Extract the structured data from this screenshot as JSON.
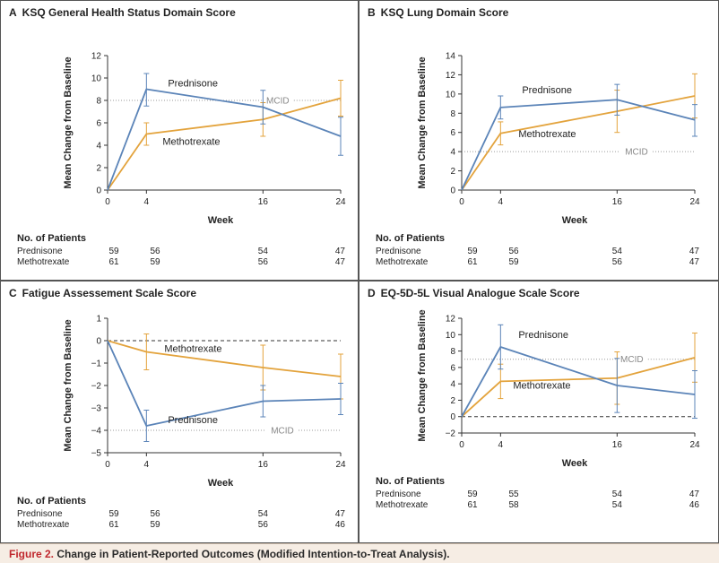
{
  "caption": {
    "label": "Figure 2.",
    "title": "Change in Patient-Reported Outcomes (Modified Intention-to-Treat Analysis)."
  },
  "colors": {
    "prednisone": "#5b84b8",
    "methotrexate": "#e3a33c",
    "mcid": "#9a9a9a",
    "axis": "#333333",
    "border": "#555555",
    "caption_bg": "#f6ede4",
    "caption_label": "#c0272d"
  },
  "chart_data": [
    {
      "type": "line",
      "panel_letter": "A",
      "title": "KSQ General Health Status Domain Score",
      "xlabel": "Week",
      "ylabel": "Mean Change from Baseline",
      "x": [
        0,
        4,
        16,
        24
      ],
      "x_ticks": [
        "0",
        "4",
        "16",
        "24"
      ],
      "ylim": [
        0,
        12
      ],
      "y_ticks": [
        0,
        2,
        4,
        6,
        8,
        10,
        12
      ],
      "zero_dashed": false,
      "mcid": {
        "value": 8,
        "label": "MCID"
      },
      "series": [
        {
          "name": "Prednisone",
          "values": [
            0,
            9.0,
            7.4,
            4.8
          ],
          "ci": [
            null,
            [
              7.5,
              10.4
            ],
            [
              5.9,
              8.9
            ],
            [
              3.1,
              6.5
            ]
          ]
        },
        {
          "name": "Methotrexate",
          "values": [
            0,
            5.0,
            6.3,
            8.2
          ],
          "ci": [
            null,
            [
              4.0,
              6.0
            ],
            [
              4.8,
              7.8
            ],
            [
              6.6,
              9.8
            ]
          ]
        }
      ],
      "patients": {
        "header": "No. of Patients",
        "rows": [
          {
            "name": "Prednisone",
            "counts": [
              "59",
              "56",
              "54",
              "47"
            ]
          },
          {
            "name": "Methotrexate",
            "counts": [
              "61",
              "59",
              "56",
              "47"
            ]
          }
        ]
      }
    },
    {
      "type": "line",
      "panel_letter": "B",
      "title": "KSQ Lung Domain Score",
      "xlabel": "Week",
      "ylabel": "Mean Change from Baseline",
      "x": [
        0,
        4,
        16,
        24
      ],
      "x_ticks": [
        "0",
        "4",
        "16",
        "24"
      ],
      "ylim": [
        0,
        14
      ],
      "y_ticks": [
        0,
        2,
        4,
        6,
        8,
        10,
        12,
        14
      ],
      "zero_dashed": false,
      "mcid": {
        "value": 4,
        "label": "MCID"
      },
      "series": [
        {
          "name": "Prednisone",
          "values": [
            0,
            8.6,
            9.4,
            7.3
          ],
          "ci": [
            null,
            [
              7.4,
              9.8
            ],
            [
              7.8,
              11.0
            ],
            [
              5.6,
              8.9
            ]
          ]
        },
        {
          "name": "Methotrexate",
          "values": [
            0,
            5.9,
            8.2,
            9.8
          ],
          "ci": [
            null,
            [
              4.7,
              7.1
            ],
            [
              6.0,
              10.4
            ],
            [
              7.5,
              12.1
            ]
          ]
        }
      ],
      "patients": {
        "header": "No. of Patients",
        "rows": [
          {
            "name": "Prednisone",
            "counts": [
              "59",
              "56",
              "54",
              "47"
            ]
          },
          {
            "name": "Methotrexate",
            "counts": [
              "61",
              "59",
              "56",
              "47"
            ]
          }
        ]
      }
    },
    {
      "type": "line",
      "panel_letter": "C",
      "title": "Fatigue Assessement Scale Score",
      "xlabel": "Week",
      "ylabel": "Mean Change from Baseline",
      "x": [
        0,
        4,
        16,
        24
      ],
      "x_ticks": [
        "0",
        "4",
        "16",
        "24"
      ],
      "ylim": [
        -5,
        1
      ],
      "y_ticks": [
        -5,
        -4,
        -3,
        -2,
        -1,
        0,
        1
      ],
      "zero_dashed": true,
      "mcid": {
        "value": -4,
        "label": "MCID"
      },
      "series": [
        {
          "name": "Prednisone",
          "values": [
            0,
            -3.8,
            -2.7,
            -2.6
          ],
          "ci": [
            null,
            [
              -4.5,
              -3.1
            ],
            [
              -3.4,
              -2.0
            ],
            [
              -3.3,
              -1.9
            ]
          ]
        },
        {
          "name": "Methotrexate",
          "values": [
            0,
            -0.5,
            -1.2,
            -1.6
          ],
          "ci": [
            null,
            [
              -1.3,
              0.3
            ],
            [
              -2.2,
              -0.2
            ],
            [
              -2.6,
              -0.6
            ]
          ]
        }
      ],
      "patients": {
        "header": "No. of Patients",
        "rows": [
          {
            "name": "Prednisone",
            "counts": [
              "59",
              "56",
              "54",
              "47"
            ]
          },
          {
            "name": "Methotrexate",
            "counts": [
              "61",
              "59",
              "56",
              "46"
            ]
          }
        ]
      }
    },
    {
      "type": "line",
      "panel_letter": "D",
      "title": "EQ-5D-5L Visual Analogue Scale Score",
      "xlabel": "Week",
      "ylabel": "Mean Change from Baseline",
      "x": [
        0,
        4,
        16,
        24
      ],
      "x_ticks": [
        "0",
        "4",
        "16",
        "24"
      ],
      "ylim": [
        -2,
        12
      ],
      "y_ticks": [
        -2,
        0,
        2,
        4,
        6,
        8,
        10,
        12
      ],
      "zero_dashed": true,
      "mcid": {
        "value": 7,
        "label": "MCID"
      },
      "series": [
        {
          "name": "Prednisone",
          "values": [
            0,
            8.5,
            3.8,
            2.7
          ],
          "ci": [
            null,
            [
              5.8,
              11.2
            ],
            [
              0.5,
              7.1
            ],
            [
              -0.2,
              5.6
            ]
          ]
        },
        {
          "name": "Methotrexate",
          "values": [
            0,
            4.3,
            4.7,
            7.2
          ],
          "ci": [
            null,
            [
              2.2,
              6.4
            ],
            [
              1.5,
              7.9
            ],
            [
              4.2,
              10.2
            ]
          ]
        }
      ],
      "patients": {
        "header": "No. of Patients",
        "rows": [
          {
            "name": "Prednisone",
            "counts": [
              "59",
              "55",
              "54",
              "47"
            ]
          },
          {
            "name": "Methotrexate",
            "counts": [
              "61",
              "58",
              "54",
              "46"
            ]
          }
        ]
      }
    }
  ]
}
